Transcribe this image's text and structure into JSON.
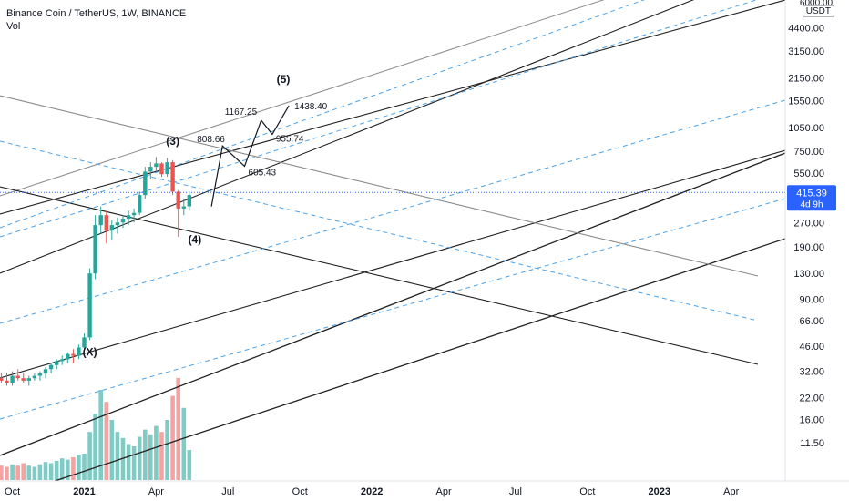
{
  "header": {
    "title": "Binance Coin / TetherUS, 1W, BINANCE",
    "volume_label": "Vol"
  },
  "price_scale": {
    "unit": "USDT",
    "top_label": "6000.00",
    "ticks": [
      "4400.00",
      "3150.00",
      "2150.00",
      "1550.00",
      "1050.00",
      "750.00",
      "550.00",
      "270.00",
      "190.00",
      "130.00",
      "90.00",
      "66.00",
      "46.00",
      "32.00",
      "22.00",
      "16.00",
      "11.50"
    ],
    "last_price": "415.39",
    "countdown": "4d 9h"
  },
  "time_scale": {
    "ticks": [
      "Oct",
      "2021",
      "Apr",
      "Jul",
      "Oct",
      "2022",
      "Apr",
      "Jul",
      "Oct",
      "2023",
      "Apr"
    ]
  },
  "colors": {
    "up": "#26a69a",
    "down": "#ef5350",
    "vol_up": "#80cbc4",
    "vol_down": "#f4a3a2",
    "channel": "#222222",
    "channel_light": "#8a8a8a",
    "dashed": "#4da3e8",
    "last_price": "#2962ff"
  },
  "chart_data": {
    "type": "candlestick",
    "symbol": "Binance Coin / TetherUS",
    "interval": "1W",
    "exchange": "BINANCE",
    "y_scale": "log",
    "y_unit": "USDT",
    "ylim": [
      9,
      6000
    ],
    "last_price": 415.39,
    "candles_approx_ohlc": [
      [
        26,
        30,
        23,
        29
      ],
      [
        29,
        31,
        27,
        28
      ],
      [
        28,
        31,
        26,
        27
      ],
      [
        27,
        32,
        26,
        30
      ],
      [
        30,
        33,
        28,
        29
      ],
      [
        29,
        31,
        27,
        28
      ],
      [
        28,
        30,
        26,
        29
      ],
      [
        29,
        31,
        28,
        30
      ],
      [
        30,
        32,
        28,
        31
      ],
      [
        31,
        34,
        29,
        33
      ],
      [
        33,
        36,
        31,
        35
      ],
      [
        35,
        38,
        33,
        37
      ],
      [
        37,
        40,
        35,
        38
      ],
      [
        38,
        42,
        36,
        41
      ],
      [
        41,
        44,
        36,
        40
      ],
      [
        40,
        47,
        38,
        45
      ],
      [
        45,
        55,
        43,
        52
      ],
      [
        52,
        140,
        50,
        130
      ],
      [
        130,
        300,
        120,
        260
      ],
      [
        260,
        340,
        230,
        300
      ],
      [
        300,
        320,
        200,
        240
      ],
      [
        240,
        280,
        210,
        260
      ],
      [
        260,
        290,
        230,
        270
      ],
      [
        270,
        300,
        250,
        285
      ],
      [
        285,
        320,
        260,
        300
      ],
      [
        300,
        330,
        270,
        310
      ],
      [
        310,
        420,
        300,
        400
      ],
      [
        400,
        600,
        380,
        560
      ],
      [
        560,
        640,
        500,
        600
      ],
      [
        600,
        690,
        560,
        630
      ],
      [
        630,
        640,
        520,
        540
      ],
      [
        540,
        680,
        520,
        640
      ],
      [
        640,
        660,
        400,
        420
      ],
      [
        420,
        430,
        220,
        330
      ],
      [
        330,
        380,
        300,
        340
      ],
      [
        340,
        420,
        320,
        400
      ]
    ],
    "volume_relative": [
      0.1,
      0.12,
      0.11,
      0.13,
      0.12,
      0.14,
      0.12,
      0.11,
      0.13,
      0.15,
      0.14,
      0.16,
      0.18,
      0.17,
      0.19,
      0.21,
      0.22,
      0.4,
      0.55,
      0.75,
      0.65,
      0.5,
      0.4,
      0.35,
      0.3,
      0.28,
      0.36,
      0.42,
      0.38,
      0.45,
      0.4,
      0.5,
      0.7,
      0.85,
      0.6,
      0.25
    ],
    "wave_labels": [
      {
        "label": "(X)",
        "date": "2021-01-11",
        "price": 40
      },
      {
        "label": "(3)",
        "date": "2021-04-26",
        "price": 820
      },
      {
        "label": "(4)",
        "date": "2021-05-24",
        "price": 200
      },
      {
        "label": "(5)",
        "date": "2021-09-13",
        "price": 2000
      }
    ],
    "projection_path": [
      {
        "date": "2021-06-14",
        "price": 340,
        "label": ""
      },
      {
        "date": "2021-06-28",
        "price": 808.66,
        "label": "808.66"
      },
      {
        "date": "2021-07-26",
        "price": 605.43,
        "label": "605.43"
      },
      {
        "date": "2021-08-16",
        "price": 1167.25,
        "label": "1167.25"
      },
      {
        "date": "2021-08-30",
        "price": 955.74,
        "label": "955.74"
      },
      {
        "date": "2021-09-20",
        "price": 1438.4,
        "label": "1438.40"
      }
    ]
  }
}
